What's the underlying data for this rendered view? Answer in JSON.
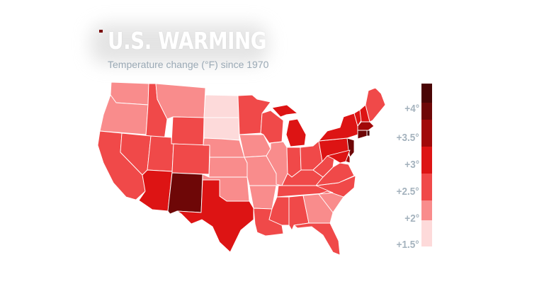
{
  "title": "U.S. WARMING",
  "subtitle": "Temperature change (°F) since 1970",
  "legend": {
    "labels": [
      "+4°",
      "+3.5°",
      "+3°",
      "+2.5°",
      "+2°",
      "+1.5°"
    ],
    "bins": [
      {
        "range": "≥ +4.5",
        "color": "#4a0505"
      },
      {
        "range": "+4 to +4.5",
        "color": "#6e0707"
      },
      {
        "range": "+3.5 to +4",
        "color": "#a10909"
      },
      {
        "range": "+3 to +3.5",
        "color": "#dd1414"
      },
      {
        "range": "+2.5 to +3",
        "color": "#f04949"
      },
      {
        "range": "+2 to +2.5",
        "color": "#f98c8c"
      },
      {
        "range": "+1.5 to +2",
        "color": "#fddada"
      }
    ]
  },
  "colors": {
    "border": "#ffffff",
    "title_text": "#ffffff",
    "subtitle_text": "#9aa9b5",
    "legend_text": "#a5b3be"
  },
  "states": [
    {
      "name": "Washington",
      "bin": 5
    },
    {
      "name": "Oregon",
      "bin": 5
    },
    {
      "name": "California",
      "bin": 4
    },
    {
      "name": "Idaho",
      "bin": 4
    },
    {
      "name": "Nevada",
      "bin": 4
    },
    {
      "name": "Montana",
      "bin": 5
    },
    {
      "name": "Wyoming",
      "bin": 4
    },
    {
      "name": "Utah",
      "bin": 4
    },
    {
      "name": "Arizona",
      "bin": 3
    },
    {
      "name": "Colorado",
      "bin": 4
    },
    {
      "name": "New Mexico",
      "bin": 1
    },
    {
      "name": "North Dakota",
      "bin": 6
    },
    {
      "name": "South Dakota",
      "bin": 6
    },
    {
      "name": "Nebraska",
      "bin": 5
    },
    {
      "name": "Kansas",
      "bin": 5
    },
    {
      "name": "Oklahoma",
      "bin": 5
    },
    {
      "name": "Texas",
      "bin": 3
    },
    {
      "name": "Minnesota",
      "bin": 4
    },
    {
      "name": "Iowa",
      "bin": 5
    },
    {
      "name": "Missouri",
      "bin": 5
    },
    {
      "name": "Arkansas",
      "bin": 5
    },
    {
      "name": "Louisiana",
      "bin": 4
    },
    {
      "name": "Wisconsin",
      "bin": 4
    },
    {
      "name": "Illinois",
      "bin": 5
    },
    {
      "name": "Michigan",
      "bin": 3
    },
    {
      "name": "Indiana",
      "bin": 4
    },
    {
      "name": "Ohio",
      "bin": 4
    },
    {
      "name": "Kentucky",
      "bin": 4
    },
    {
      "name": "Tennessee",
      "bin": 4
    },
    {
      "name": "Mississippi",
      "bin": 4
    },
    {
      "name": "Alabama",
      "bin": 4
    },
    {
      "name": "Georgia",
      "bin": 5
    },
    {
      "name": "Florida",
      "bin": 4
    },
    {
      "name": "South Carolina",
      "bin": 5
    },
    {
      "name": "North Carolina",
      "bin": 4
    },
    {
      "name": "Virginia",
      "bin": 4
    },
    {
      "name": "West Virginia",
      "bin": 4
    },
    {
      "name": "Pennsylvania",
      "bin": 3
    },
    {
      "name": "New York",
      "bin": 3
    },
    {
      "name": "Vermont",
      "bin": 3
    },
    {
      "name": "New Hampshire",
      "bin": 3
    },
    {
      "name": "Maine",
      "bin": 4
    },
    {
      "name": "Massachusetts",
      "bin": 2
    },
    {
      "name": "Rhode Island",
      "bin": 0
    },
    {
      "name": "Connecticut",
      "bin": 1
    },
    {
      "name": "New Jersey",
      "bin": 1
    },
    {
      "name": "Delaware",
      "bin": 2
    },
    {
      "name": "Maryland",
      "bin": 3
    }
  ]
}
